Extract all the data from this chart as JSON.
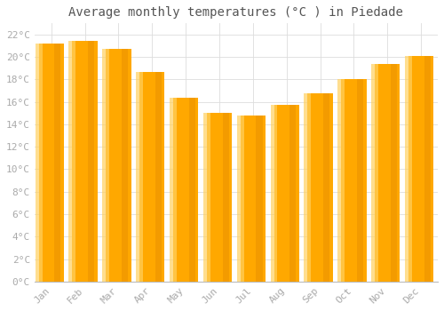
{
  "title": "Average monthly temperatures (°C ) in Piedade",
  "months": [
    "Jan",
    "Feb",
    "Mar",
    "Apr",
    "May",
    "Jun",
    "Jul",
    "Aug",
    "Sep",
    "Oct",
    "Nov",
    "Dec"
  ],
  "values": [
    21.2,
    21.4,
    20.7,
    18.7,
    16.4,
    15.0,
    14.8,
    15.7,
    16.8,
    18.0,
    19.4,
    20.1
  ],
  "bar_color_light": "#FFD060",
  "bar_color_main": "#FFA800",
  "bar_color_dark": "#E89000",
  "background_color": "#FFFFFF",
  "plot_bg_color": "#FFFFFF",
  "grid_color": "#DDDDDD",
  "ylim": [
    0,
    23
  ],
  "yticks": [
    0,
    2,
    4,
    6,
    8,
    10,
    12,
    14,
    16,
    18,
    20,
    22
  ],
  "title_fontsize": 10,
  "tick_fontsize": 8,
  "tick_color": "#AAAAAA",
  "title_color": "#555555",
  "bar_width": 0.75
}
